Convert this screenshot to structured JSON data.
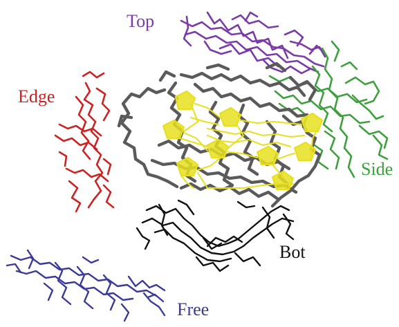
{
  "labels": {
    "top": "Top",
    "edge": "Edge",
    "side": "Side",
    "bot": "Bot",
    "free": "Free"
  },
  "colors": {
    "top": "#7a3aa8",
    "edge": "#cc2222",
    "side": "#3da03d",
    "bot": "#111111",
    "free": "#3a3a9a",
    "host_frame": "#5a5a5a",
    "host_rings": "#e6e01f"
  }
}
